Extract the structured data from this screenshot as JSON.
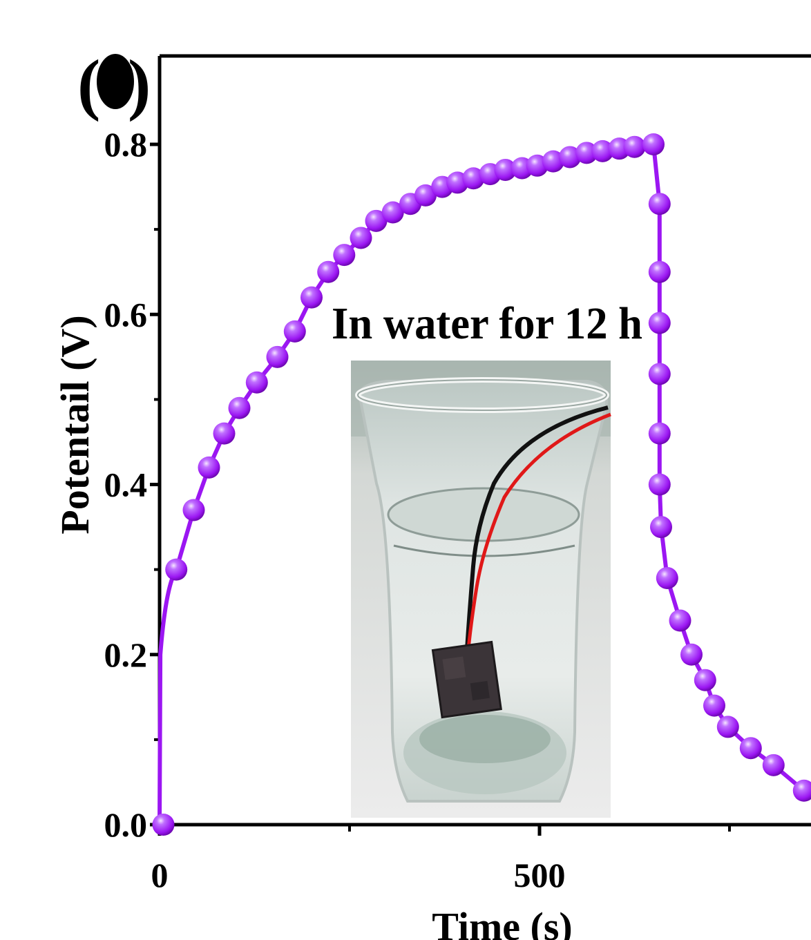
{
  "panel_label": "(",
  "panel_label_close": ")",
  "inset": {
    "caption": "In water for 12 h",
    "photo_subject": "glass-of-water-with-device-and-wires"
  },
  "colors": {
    "series": "#9b16f2",
    "marker_highlight": "#e8c4ff",
    "axis": "#000000"
  },
  "chart_data": {
    "type": "line",
    "xlabel": "Time (s)",
    "ylabel": "Potentail (V)",
    "xlim": [
      0,
      860
    ],
    "ylim": [
      0,
      0.8
    ],
    "x_ticks": [
      0,
      500
    ],
    "x_tick_labels": [
      "0",
      "500"
    ],
    "y_ticks": [
      0.0,
      0.2,
      0.4,
      0.6,
      0.8
    ],
    "y_tick_labels": [
      "0.0",
      "0.2",
      "0.4",
      "0.6",
      "0.8"
    ],
    "series": [
      {
        "marker": "circle",
        "x": [
          5,
          22,
          45,
          65,
          85,
          105,
          128,
          155,
          178,
          200,
          222,
          243,
          265,
          285,
          307,
          330,
          350,
          372,
          392,
          413,
          435,
          455,
          477,
          497,
          518,
          540,
          562,
          583,
          605,
          625,
          650,
          658,
          658,
          658,
          658,
          658,
          658,
          660,
          668,
          685,
          700,
          718,
          730,
          748,
          778,
          808,
          848
        ],
        "y": [
          0.0,
          0.3,
          0.37,
          0.42,
          0.46,
          0.49,
          0.52,
          0.55,
          0.58,
          0.62,
          0.65,
          0.67,
          0.69,
          0.71,
          0.72,
          0.73,
          0.74,
          0.75,
          0.755,
          0.76,
          0.765,
          0.77,
          0.772,
          0.775,
          0.78,
          0.785,
          0.79,
          0.792,
          0.795,
          0.797,
          0.8,
          0.73,
          0.65,
          0.59,
          0.53,
          0.46,
          0.4,
          0.35,
          0.29,
          0.24,
          0.2,
          0.17,
          0.14,
          0.115,
          0.09,
          0.07,
          0.04
        ]
      }
    ]
  }
}
